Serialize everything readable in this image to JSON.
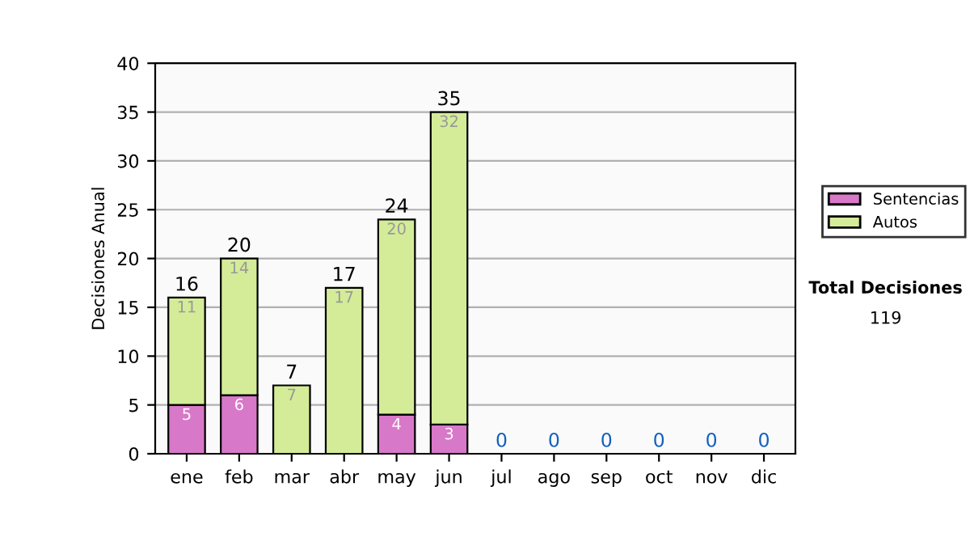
{
  "chart_data": {
    "type": "bar",
    "stacked": true,
    "ylabel": "Decisiones Anual",
    "categories": [
      "ene",
      "feb",
      "mar",
      "abr",
      "may",
      "jun",
      "jul",
      "ago",
      "sep",
      "oct",
      "nov",
      "dic"
    ],
    "series": [
      {
        "name": "Sentencias",
        "color": "#d878c8",
        "values": [
          5,
          6,
          0,
          0,
          4,
          3,
          0,
          0,
          0,
          0,
          0,
          0
        ],
        "value_labels": [
          "5",
          "6",
          null,
          null,
          "4",
          "3",
          null,
          null,
          null,
          null,
          null,
          null
        ]
      },
      {
        "name": "Autos",
        "color": "#d4ec98",
        "values": [
          11,
          14,
          7,
          17,
          20,
          32,
          0,
          0,
          0,
          0,
          0,
          0
        ],
        "value_labels": [
          "11",
          "14",
          "7",
          "17",
          "20",
          "32",
          null,
          null,
          null,
          null,
          null,
          null
        ]
      }
    ],
    "totals": [
      "16",
      "20",
      "7",
      "17",
      "24",
      "35",
      "0",
      "0",
      "0",
      "0",
      "0",
      "0"
    ],
    "ylim": [
      0,
      40
    ],
    "yticks": [
      0,
      5,
      10,
      15,
      20,
      25,
      30,
      35,
      40
    ],
    "grid": "y",
    "legend": "right",
    "annotations": [
      "Total Decisiones",
      "119"
    ]
  }
}
